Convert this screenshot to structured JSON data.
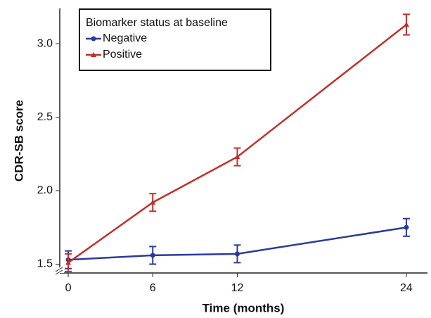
{
  "chart_data": {
    "type": "line",
    "x_label": "Time (months)",
    "y_label": "CDR-SB score",
    "x": [
      0,
      6,
      12,
      24
    ],
    "series": [
      {
        "name": "Negative",
        "color": "#2b3a9a",
        "marker": "circle",
        "values": [
          1.53,
          1.56,
          1.57,
          1.75
        ],
        "errors": [
          0.06,
          0.06,
          0.06,
          0.06
        ]
      },
      {
        "name": "Positive",
        "color": "#c0302b",
        "marker": "triangle",
        "values": [
          1.51,
          1.92,
          2.23,
          3.13
        ],
        "errors": [
          0.06,
          0.06,
          0.06,
          0.07
        ]
      }
    ],
    "legend_title": "Biomarker status at baseline",
    "legend": "upper left",
    "xlim": [
      -0.6,
      25.5
    ],
    "xticks": [
      0,
      6,
      12,
      24
    ],
    "ylim": [
      1.44,
      3.24
    ],
    "yticks": [
      1.5,
      {
        "value": 2,
        "label": "2.0"
      },
      2.5,
      {
        "value": 3,
        "label": "3.0"
      }
    ],
    "grid": false
  }
}
